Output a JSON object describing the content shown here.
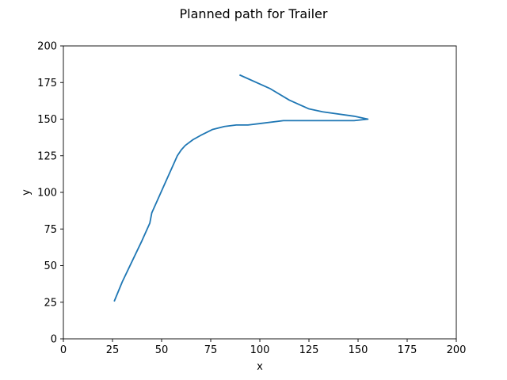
{
  "chart_data": {
    "type": "line",
    "title": "Planned path for Trailer",
    "xlabel": "x",
    "ylabel": "y",
    "xlim": [
      0,
      200
    ],
    "ylim": [
      0,
      200
    ],
    "xticks": [
      "0",
      "25",
      "50",
      "75",
      "100",
      "125",
      "150",
      "175",
      "200"
    ],
    "yticks": [
      "0",
      "25",
      "50",
      "75",
      "100",
      "125",
      "150",
      "175",
      "200"
    ],
    "grid": false,
    "series": [
      {
        "color": "#1f77b4",
        "x": [
          26,
          30,
          35,
          40,
          44,
          45,
          48,
          52,
          56,
          58,
          60,
          62,
          66,
          70,
          76,
          82,
          88,
          94,
          100,
          112,
          130,
          148,
          155,
          148,
          132,
          125,
          115,
          105,
          90
        ],
        "y": [
          26,
          39,
          53,
          67,
          79,
          86,
          95,
          107,
          119,
          125,
          129,
          132,
          136,
          139,
          143,
          145,
          146,
          146,
          147,
          149,
          149,
          149,
          150,
          152,
          155,
          157,
          163,
          171,
          180
        ]
      }
    ]
  }
}
